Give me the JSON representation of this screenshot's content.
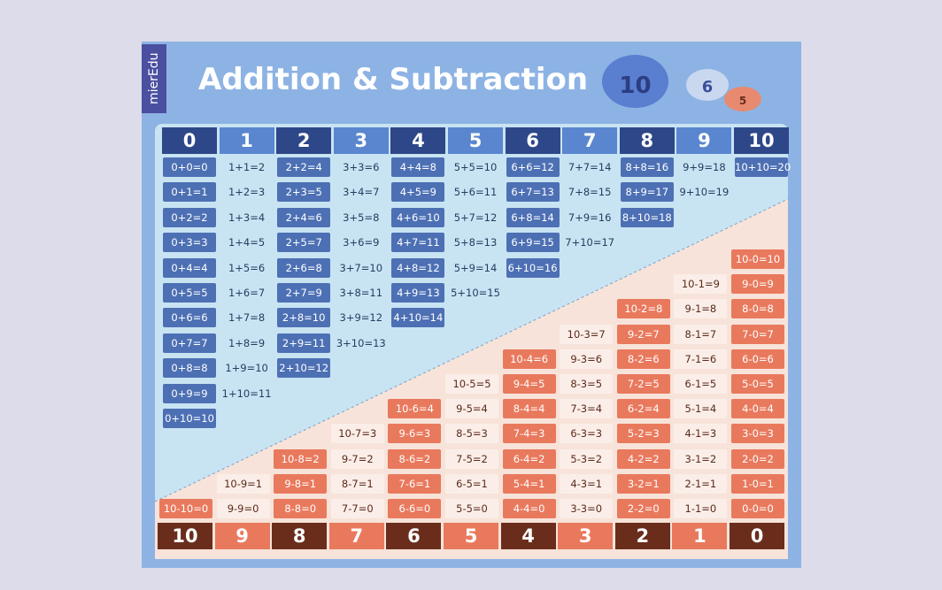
{
  "brand": "mierEdu",
  "title": "Addition & Subtraction",
  "clouds": [
    "10",
    "6",
    "5"
  ],
  "addition": {
    "headers": [
      0,
      1,
      2,
      3,
      4,
      5,
      6,
      7,
      8,
      9,
      10
    ],
    "columns": [
      [
        "0+0=0",
        "0+1=1",
        "0+2=2",
        "0+3=3",
        "0+4=4",
        "0+5=5",
        "0+6=6",
        "0+7=7",
        "0+8=8",
        "0+9=9",
        "0+10=10"
      ],
      [
        "1+1=2",
        "1+2=3",
        "1+3=4",
        "1+4=5",
        "1+5=6",
        "1+6=7",
        "1+7=8",
        "1+8=9",
        "1+9=10",
        "1+10=11"
      ],
      [
        "2+2=4",
        "2+3=5",
        "2+4=6",
        "2+5=7",
        "2+6=8",
        "2+7=9",
        "2+8=10",
        "2+9=11",
        "2+10=12"
      ],
      [
        "3+3=6",
        "3+4=7",
        "3+5=8",
        "3+6=9",
        "3+7=10",
        "3+8=11",
        "3+9=12",
        "3+10=13"
      ],
      [
        "4+4=8",
        "4+5=9",
        "4+6=10",
        "4+7=11",
        "4+8=12",
        "4+9=13",
        "4+10=14"
      ],
      [
        "5+5=10",
        "5+6=11",
        "5+7=12",
        "5+8=13",
        "5+9=14",
        "5+10=15"
      ],
      [
        "6+6=12",
        "6+7=13",
        "6+8=14",
        "6+9=15",
        "6+10=16"
      ],
      [
        "7+7=14",
        "7+8=15",
        "7+9=16",
        "7+10=17"
      ],
      [
        "8+8=16",
        "8+9=17",
        "8+10=18"
      ],
      [
        "9+9=18",
        "9+10=19"
      ],
      [
        "10+10=20"
      ]
    ]
  },
  "subtraction": {
    "headers": [
      10,
      9,
      8,
      7,
      6,
      5,
      4,
      3,
      2,
      1,
      0
    ],
    "columns": [
      [
        "10-10=0"
      ],
      [
        "10-9=1",
        "9-9=0"
      ],
      [
        "10-8=2",
        "9-8=1",
        "8-8=0"
      ],
      [
        "10-7=3",
        "9-7=2",
        "8-7=1",
        "7-7=0"
      ],
      [
        "10-6=4",
        "9-6=3",
        "8-6=2",
        "7-6=1",
        "6-6=0"
      ],
      [
        "10-5=5",
        "9-5=4",
        "8-5=3",
        "7-5=2",
        "6-5=1",
        "5-5=0"
      ],
      [
        "10-4=6",
        "9-4=5",
        "8-4=4",
        "7-4=3",
        "6-4=2",
        "5-4=1",
        "4-4=0"
      ],
      [
        "10-3=7",
        "9-3=6",
        "8-3=5",
        "7-3=4",
        "6-3=3",
        "5-3=2",
        "4-3=1",
        "3-3=0"
      ],
      [
        "10-2=8",
        "9-2=7",
        "8-2=6",
        "7-2=5",
        "6-2=4",
        "5-2=3",
        "4-2=2",
        "3-2=1",
        "2-2=0"
      ],
      [
        "10-1=9",
        "9-1=8",
        "8-1=7",
        "7-1=6",
        "6-1=5",
        "5-1=4",
        "4-1=3",
        "3-1=2",
        "2-1=1",
        "1-1=0"
      ],
      [
        "10-0=10",
        "9-0=9",
        "8-0=8",
        "7-0=7",
        "6-0=6",
        "5-0=5",
        "4-0=4",
        "3-0=3",
        "2-0=2",
        "1-0=1",
        "0-0=0"
      ]
    ]
  }
}
